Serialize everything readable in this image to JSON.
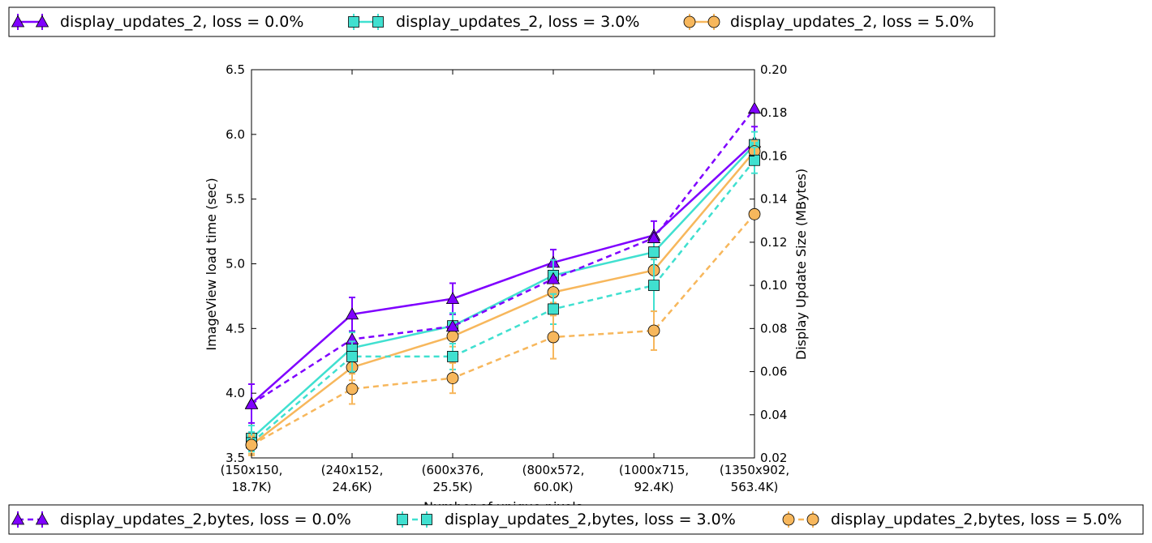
{
  "chart_data": {
    "type": "line",
    "xlabel": "Number of unique pixels",
    "ylabel_left": "ImageView load time (sec)",
    "ylabel_right": "Display Update Size (MBytes)",
    "categories": [
      [
        "(150x150,",
        "18.7K)"
      ],
      [
        "(240x152,",
        "24.6K)"
      ],
      [
        "(600x376,",
        "25.5K)"
      ],
      [
        "(800x572,",
        "60.0K)"
      ],
      [
        "(1000x715,",
        "92.4K)"
      ],
      [
        "(1350x902,",
        "563.4K)"
      ]
    ],
    "ylim_left": [
      3.5,
      6.5
    ],
    "ylim_right": [
      0.02,
      0.2
    ],
    "yticks_left": [
      "3.5",
      "4.0",
      "4.5",
      "5.0",
      "5.5",
      "6.0",
      "6.5"
    ],
    "yticks_right": [
      "0.02",
      "0.04",
      "0.06",
      "0.08",
      "0.10",
      "0.12",
      "0.14",
      "0.16",
      "0.18",
      "0.20"
    ],
    "legend_top_placement": "top, above plot",
    "legend_bottom_placement": "bottom, below plot",
    "series": [
      {
        "name": "display_updates_2, loss = 0.0%",
        "axis": "left",
        "style": "solid",
        "marker": "triangle",
        "color": "#7f00ff",
        "values": [
          3.92,
          4.61,
          4.73,
          5.01,
          5.22,
          5.94
        ],
        "err": [
          0.15,
          0.13,
          0.12,
          0.1,
          0.11,
          0.12
        ]
      },
      {
        "name": "display_updates_2, loss = 3.0%",
        "axis": "left",
        "style": "solid",
        "marker": "square",
        "color": "#40e0d0",
        "values": [
          3.65,
          4.35,
          4.52,
          4.91,
          5.09,
          5.92
        ],
        "err": [
          0.1,
          0.12,
          0.1,
          0.12,
          0.1,
          0.1
        ]
      },
      {
        "name": "display_updates_2, loss = 5.0%",
        "axis": "left",
        "style": "solid",
        "marker": "circle",
        "color": "#f7b75c",
        "values": [
          3.6,
          4.2,
          4.44,
          4.78,
          4.95,
          5.87
        ],
        "err": [
          0.08,
          0.1,
          0.08,
          0.08,
          0.09,
          0.08
        ]
      },
      {
        "name": "display_updates_2,bytes, loss = 0.0%",
        "axis": "right",
        "style": "dashed",
        "marker": "triangle",
        "color": "#7f00ff",
        "values": [
          0.045,
          0.075,
          0.081,
          0.103,
          0.122,
          0.182
        ],
        "err": [
          0.0,
          0.0,
          0.0,
          0.0,
          0.0,
          0.0
        ]
      },
      {
        "name": "display_updates_2,bytes, loss = 3.0%",
        "axis": "right",
        "style": "dashed",
        "marker": "square",
        "color": "#40e0d0",
        "values": [
          0.027,
          0.067,
          0.067,
          0.089,
          0.1,
          0.158
        ],
        "err": [
          0.005,
          0.007,
          0.006,
          0.007,
          0.012,
          0.006
        ]
      },
      {
        "name": "display_updates_2,bytes, loss = 5.0%",
        "axis": "right",
        "style": "dashed",
        "marker": "circle",
        "color": "#f7b75c",
        "values": [
          0.026,
          0.052,
          0.057,
          0.076,
          0.079,
          0.133
        ],
        "err": [
          0.004,
          0.007,
          0.007,
          0.01,
          0.009,
          0.0
        ]
      }
    ]
  }
}
